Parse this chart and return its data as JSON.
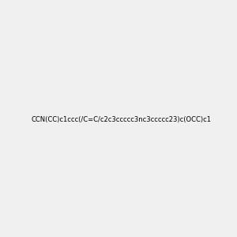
{
  "smiles": "CCN(CC)c1ccc(/C=C/c2c3ccccc3nc3ccccc23)c(OCC)c1",
  "title": "",
  "bg_color": "#f0f0f0",
  "img_size": [
    300,
    300
  ],
  "dpi": 100
}
